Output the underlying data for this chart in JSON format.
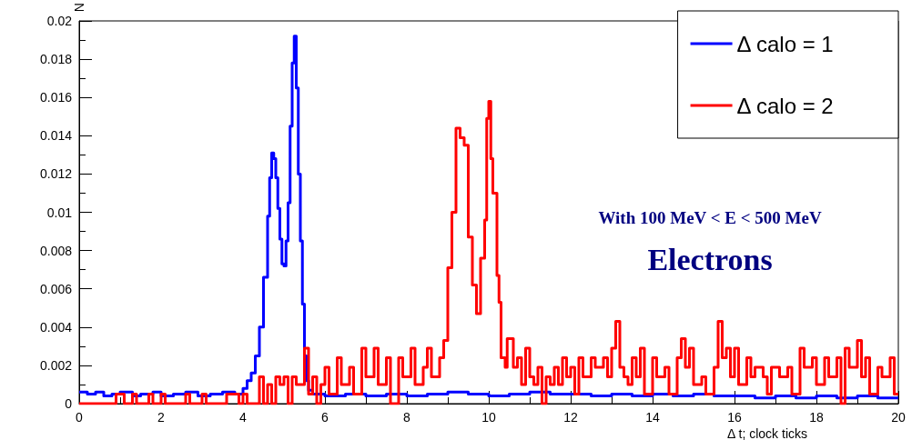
{
  "chart_data": {
    "type": "step",
    "xlabel": "Δ t; clock ticks",
    "ylabel": "N",
    "xlim": [
      0,
      20
    ],
    "xticks": [
      0,
      2,
      4,
      6,
      8,
      10,
      12,
      14,
      16,
      18,
      20
    ],
    "ylim": [
      0,
      0.02
    ],
    "yticks": [
      0,
      0.002,
      0.004,
      0.006,
      0.008,
      0.01,
      0.012,
      0.014,
      0.016,
      0.018,
      0.02
    ],
    "grid": false,
    "legend": "top right",
    "marker": "none",
    "line_style": "solid",
    "annotations": [
      "With 100 MeV < E < 500 MeV",
      "Electrons"
    ],
    "series": [
      {
        "name": "Δ calo = 1",
        "color": "#0000ff",
        "x": [
          0,
          0.2,
          0.4,
          0.6,
          0.8,
          1.0,
          1.3,
          1.5,
          1.8,
          2.0,
          2.3,
          2.6,
          2.9,
          3.2,
          3.5,
          3.8,
          4.0,
          4.1,
          4.2,
          4.3,
          4.4,
          4.5,
          4.6,
          4.65,
          4.7,
          4.75,
          4.8,
          4.85,
          4.9,
          4.95,
          5.0,
          5.05,
          5.1,
          5.15,
          5.2,
          5.25,
          5.3,
          5.35,
          5.4,
          5.45,
          5.5,
          5.55,
          5.6,
          5.7,
          6.0,
          6.5,
          7.0,
          7.5,
          8.0,
          8.5,
          9.0,
          9.5,
          10.0,
          10.5,
          11.0,
          11.5,
          12.0,
          12.5,
          13.0,
          13.5,
          14.0,
          14.5,
          15.0,
          15.5,
          16.0,
          16.5,
          17.0,
          17.5,
          18.0,
          18.5,
          19.0,
          19.5,
          20.0
        ],
        "values": [
          0.0006,
          0.0005,
          0.0006,
          0.0004,
          0.0005,
          0.0006,
          0.0004,
          0.0005,
          0.0006,
          0.0004,
          0.0005,
          0.0006,
          0.0004,
          0.0005,
          0.0006,
          0.0005,
          0.0008,
          0.0012,
          0.0016,
          0.0025,
          0.004,
          0.0066,
          0.0098,
          0.0118,
          0.0131,
          0.0128,
          0.0118,
          0.0102,
          0.0086,
          0.0073,
          0.0072,
          0.0085,
          0.0105,
          0.0145,
          0.0178,
          0.0192,
          0.0165,
          0.012,
          0.0085,
          0.0052,
          0.0025,
          0.0012,
          0.0007,
          0.0005,
          0.0004,
          0.0005,
          0.0004,
          0.0005,
          0.0004,
          0.0005,
          0.0006,
          0.0005,
          0.0004,
          0.0005,
          0.0006,
          0.0005,
          0.0005,
          0.0004,
          0.0005,
          0.0004,
          0.0005,
          0.0004,
          0.0005,
          0.0004,
          0.0004,
          0.0003,
          0.0004,
          0.0003,
          0.0004,
          0.0003,
          0.0004,
          0.0003,
          0.0003
        ]
      },
      {
        "name": "Δ calo = 2",
        "color": "#ff0000",
        "x": [
          0,
          0.9,
          1.1,
          1.3,
          1.4,
          1.7,
          1.8,
          2.0,
          2.1,
          2.6,
          2.7,
          3.0,
          3.1,
          3.6,
          3.9,
          4.0,
          4.1,
          4.4,
          4.5,
          4.6,
          4.7,
          4.8,
          4.9,
          5.0,
          5.1,
          5.2,
          5.3,
          5.5,
          5.6,
          5.7,
          5.8,
          5.9,
          6.0,
          6.1,
          6.3,
          6.4,
          6.6,
          6.7,
          6.9,
          7.0,
          7.2,
          7.3,
          7.5,
          7.6,
          7.8,
          7.9,
          8.1,
          8.2,
          8.4,
          8.5,
          8.6,
          8.8,
          8.9,
          9.0,
          9.1,
          9.2,
          9.3,
          9.4,
          9.5,
          9.6,
          9.7,
          9.8,
          9.9,
          9.95,
          10.0,
          10.05,
          10.1,
          10.2,
          10.25,
          10.3,
          10.4,
          10.45,
          10.6,
          10.7,
          10.8,
          10.9,
          11.0,
          11.1,
          11.2,
          11.3,
          11.4,
          11.5,
          11.6,
          11.7,
          11.8,
          11.9,
          12.0,
          12.1,
          12.2,
          12.3,
          12.5,
          12.6,
          12.8,
          12.9,
          13.0,
          13.1,
          13.2,
          13.3,
          13.4,
          13.5,
          13.6,
          13.7,
          13.8,
          14.0,
          14.1,
          14.3,
          14.4,
          14.6,
          14.7,
          14.8,
          14.9,
          15.0,
          15.2,
          15.3,
          15.5,
          15.6,
          15.7,
          15.8,
          15.9,
          16.0,
          16.1,
          16.3,
          16.4,
          16.5,
          16.7,
          16.8,
          16.9,
          17.1,
          17.3,
          17.4,
          17.6,
          17.7,
          17.9,
          18.0,
          18.2,
          18.3,
          18.5,
          18.6,
          18.7,
          18.8,
          19.0,
          19.1,
          19.2,
          19.3,
          19.5,
          19.6,
          19.8,
          19.9,
          20.0
        ],
        "values": [
          0,
          0.0005,
          0,
          0.0005,
          0,
          0.0005,
          0,
          0.0005,
          0,
          0.0005,
          0,
          0.0005,
          0,
          0.0005,
          0,
          0.0005,
          0,
          0.0014,
          0,
          0.001,
          0,
          0.0014,
          0.001,
          0.0014,
          0,
          0.0014,
          0.001,
          0.0029,
          0.0005,
          0.0014,
          0,
          0.001,
          0.0019,
          0.0005,
          0.0024,
          0.001,
          0.0019,
          0.0005,
          0.0029,
          0.0014,
          0.0029,
          0.001,
          0.0024,
          0,
          0.0024,
          0.0014,
          0.0029,
          0.001,
          0.0019,
          0.0029,
          0.0014,
          0.0024,
          0.0033,
          0.0071,
          0.01,
          0.0144,
          0.0139,
          0.0135,
          0.0087,
          0.0062,
          0.0047,
          0.0076,
          0.0096,
          0.0149,
          0.0158,
          0.0128,
          0.011,
          0.0067,
          0.0053,
          0.0024,
          0.0019,
          0.0034,
          0.0019,
          0.0024,
          0.001,
          0.0029,
          0.0014,
          0.001,
          0.0019,
          0,
          0.0014,
          0.001,
          0.0019,
          0.001,
          0.0024,
          0.0014,
          0.0019,
          0.0005,
          0.0024,
          0.0014,
          0.0024,
          0.0019,
          0.0024,
          0.0014,
          0.0029,
          0.0043,
          0.0019,
          0.0014,
          0.001,
          0.0024,
          0.0014,
          0.0029,
          0.0005,
          0.0024,
          0.0014,
          0.0019,
          0.0005,
          0.0024,
          0.0034,
          0.0019,
          0.0029,
          0.001,
          0.0014,
          0.0005,
          0.0019,
          0.0043,
          0.0024,
          0.0029,
          0.0014,
          0.0029,
          0.001,
          0.0024,
          0.0014,
          0.0019,
          0.0014,
          0.0005,
          0.0019,
          0.0014,
          0.0019,
          0.0005,
          0.0029,
          0.0019,
          0.0024,
          0.001,
          0.0024,
          0.0014,
          0.0024,
          0,
          0.0029,
          0.0019,
          0.0033,
          0.0014,
          0.0024,
          0.0005,
          0.0019,
          0.0014,
          0.0024,
          0.0005,
          0.0005
        ]
      }
    ]
  }
}
